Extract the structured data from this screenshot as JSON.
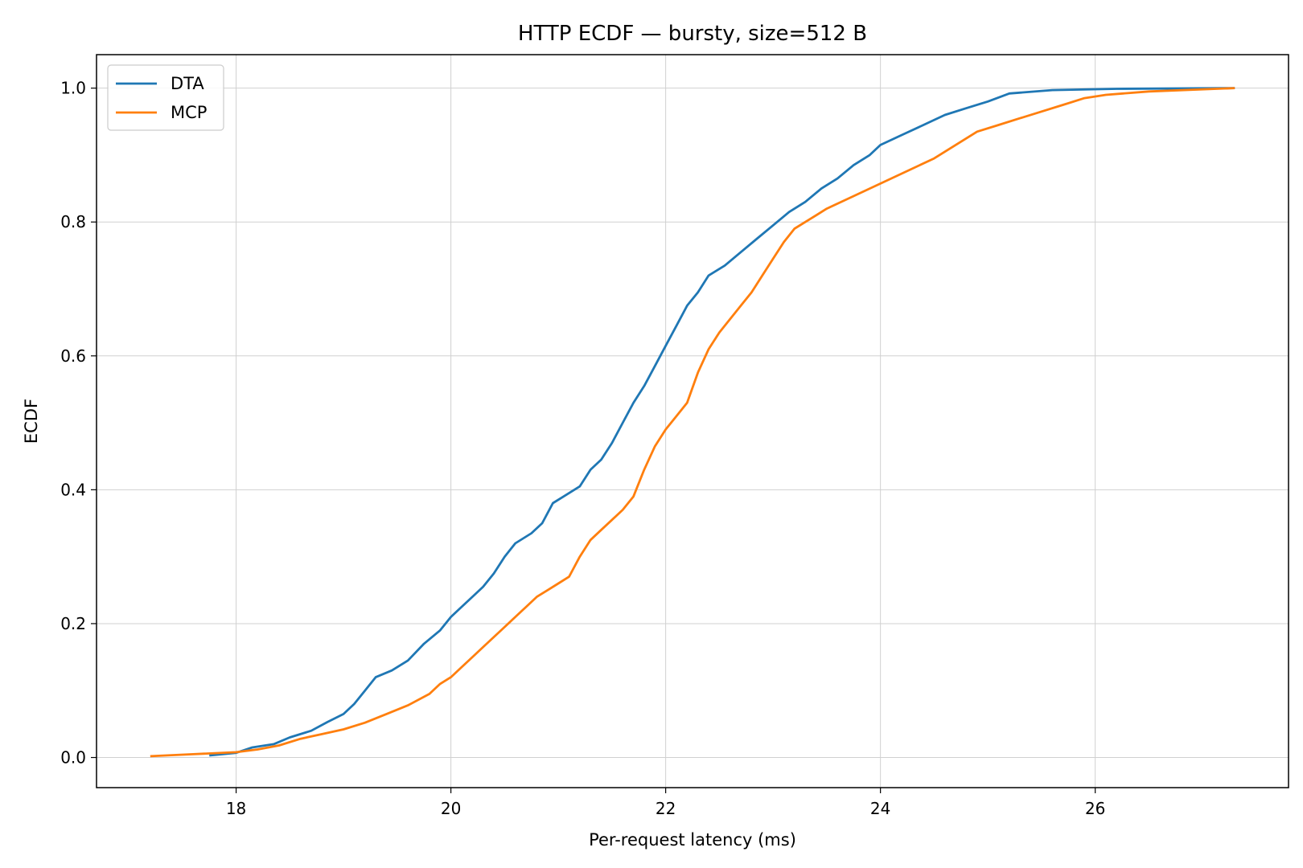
{
  "chart_data": {
    "type": "line",
    "title": "HTTP ECDF — bursty, size=512 B",
    "xlabel": "Per-request latency (ms)",
    "ylabel": "ECDF",
    "xlim": [
      16.7,
      27.8
    ],
    "ylim": [
      -0.045,
      1.05
    ],
    "xticks": [
      18,
      20,
      22,
      24,
      26
    ],
    "yticks": [
      0.0,
      0.2,
      0.4,
      0.6,
      0.8,
      1.0
    ],
    "xtick_labels": [
      "18",
      "20",
      "22",
      "24",
      "26"
    ],
    "ytick_labels": [
      "0.0",
      "0.2",
      "0.4",
      "0.6",
      "0.8",
      "1.0"
    ],
    "grid": true,
    "legend_position": "top-left",
    "series": [
      {
        "name": "DTA",
        "color": "#1f77b4",
        "points": [
          [
            17.75,
            0.003
          ],
          [
            18.0,
            0.007
          ],
          [
            18.15,
            0.015
          ],
          [
            18.35,
            0.02
          ],
          [
            18.5,
            0.03
          ],
          [
            18.7,
            0.04
          ],
          [
            18.85,
            0.053
          ],
          [
            19.0,
            0.065
          ],
          [
            19.1,
            0.08
          ],
          [
            19.2,
            0.1
          ],
          [
            19.3,
            0.12
          ],
          [
            19.45,
            0.13
          ],
          [
            19.6,
            0.145
          ],
          [
            19.75,
            0.17
          ],
          [
            19.9,
            0.19
          ],
          [
            20.0,
            0.21
          ],
          [
            20.1,
            0.225
          ],
          [
            20.2,
            0.24
          ],
          [
            20.3,
            0.255
          ],
          [
            20.4,
            0.275
          ],
          [
            20.5,
            0.3
          ],
          [
            20.6,
            0.32
          ],
          [
            20.75,
            0.335
          ],
          [
            20.85,
            0.35
          ],
          [
            20.95,
            0.38
          ],
          [
            21.05,
            0.39
          ],
          [
            21.2,
            0.405
          ],
          [
            21.3,
            0.43
          ],
          [
            21.4,
            0.445
          ],
          [
            21.5,
            0.47
          ],
          [
            21.6,
            0.5
          ],
          [
            21.7,
            0.53
          ],
          [
            21.8,
            0.555
          ],
          [
            21.9,
            0.585
          ],
          [
            22.0,
            0.615
          ],
          [
            22.1,
            0.645
          ],
          [
            22.2,
            0.675
          ],
          [
            22.3,
            0.695
          ],
          [
            22.4,
            0.72
          ],
          [
            22.55,
            0.735
          ],
          [
            22.7,
            0.755
          ],
          [
            22.85,
            0.775
          ],
          [
            23.0,
            0.795
          ],
          [
            23.15,
            0.815
          ],
          [
            23.3,
            0.83
          ],
          [
            23.45,
            0.85
          ],
          [
            23.6,
            0.865
          ],
          [
            23.75,
            0.885
          ],
          [
            23.9,
            0.9
          ],
          [
            24.0,
            0.915
          ],
          [
            24.2,
            0.93
          ],
          [
            24.4,
            0.945
          ],
          [
            24.6,
            0.96
          ],
          [
            24.8,
            0.97
          ],
          [
            25.0,
            0.98
          ],
          [
            25.2,
            0.992
          ],
          [
            25.6,
            0.997
          ],
          [
            26.2,
            0.999
          ],
          [
            27.3,
            1.0
          ]
        ]
      },
      {
        "name": "MCP",
        "color": "#ff7f0e",
        "points": [
          [
            17.2,
            0.002
          ],
          [
            17.6,
            0.005
          ],
          [
            18.0,
            0.008
          ],
          [
            18.2,
            0.012
          ],
          [
            18.4,
            0.018
          ],
          [
            18.6,
            0.028
          ],
          [
            18.8,
            0.035
          ],
          [
            19.0,
            0.042
          ],
          [
            19.2,
            0.052
          ],
          [
            19.4,
            0.065
          ],
          [
            19.6,
            0.078
          ],
          [
            19.8,
            0.095
          ],
          [
            19.9,
            0.11
          ],
          [
            20.0,
            0.12
          ],
          [
            20.1,
            0.135
          ],
          [
            20.2,
            0.15
          ],
          [
            20.3,
            0.165
          ],
          [
            20.4,
            0.18
          ],
          [
            20.5,
            0.195
          ],
          [
            20.6,
            0.21
          ],
          [
            20.7,
            0.225
          ],
          [
            20.8,
            0.24
          ],
          [
            20.9,
            0.25
          ],
          [
            21.0,
            0.26
          ],
          [
            21.1,
            0.27
          ],
          [
            21.2,
            0.3
          ],
          [
            21.3,
            0.325
          ],
          [
            21.4,
            0.34
          ],
          [
            21.5,
            0.355
          ],
          [
            21.6,
            0.37
          ],
          [
            21.7,
            0.39
          ],
          [
            21.8,
            0.43
          ],
          [
            21.9,
            0.465
          ],
          [
            22.0,
            0.49
          ],
          [
            22.1,
            0.51
          ],
          [
            22.2,
            0.53
          ],
          [
            22.3,
            0.575
          ],
          [
            22.4,
            0.61
          ],
          [
            22.5,
            0.635
          ],
          [
            22.6,
            0.655
          ],
          [
            22.7,
            0.675
          ],
          [
            22.8,
            0.695
          ],
          [
            22.9,
            0.72
          ],
          [
            23.0,
            0.745
          ],
          [
            23.1,
            0.77
          ],
          [
            23.2,
            0.79
          ],
          [
            23.35,
            0.805
          ],
          [
            23.5,
            0.82
          ],
          [
            23.7,
            0.835
          ],
          [
            23.9,
            0.85
          ],
          [
            24.1,
            0.865
          ],
          [
            24.3,
            0.88
          ],
          [
            24.5,
            0.895
          ],
          [
            24.7,
            0.915
          ],
          [
            24.9,
            0.935
          ],
          [
            25.1,
            0.945
          ],
          [
            25.3,
            0.955
          ],
          [
            25.5,
            0.965
          ],
          [
            25.7,
            0.975
          ],
          [
            25.9,
            0.985
          ],
          [
            26.1,
            0.99
          ],
          [
            26.5,
            0.995
          ],
          [
            27.3,
            1.0
          ]
        ]
      }
    ]
  }
}
